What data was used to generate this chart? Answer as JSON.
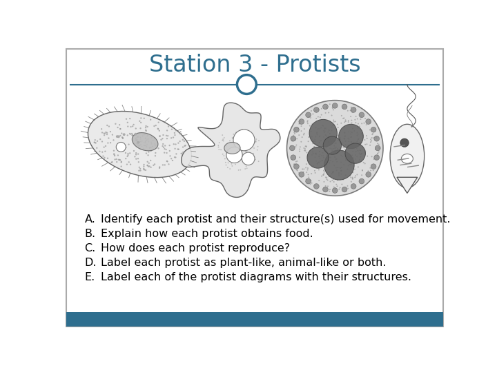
{
  "title": "Station 3 - Protists",
  "title_color": "#2e6e8e",
  "title_fontsize": 24,
  "background_color": "#ffffff",
  "border_color": "#cccccc",
  "footer_color": "#2e6e8e",
  "divider_color": "#2e6e8e",
  "circle_color": "#2e6e8e",
  "questions": [
    {
      "label": "A.",
      "text": "Identify each protist and their structure(s) used for movement."
    },
    {
      "label": "B.",
      "text": "Explain how each protist obtains food."
    },
    {
      "label": "C.",
      "text": "How does each protist reproduce?"
    },
    {
      "label": "D.",
      "text": "Label each protist as plant-like, animal-like or both."
    },
    {
      "label": "E.",
      "text": "Label each of the protist diagrams with their structures."
    }
  ],
  "text_color": "#000000",
  "text_fontsize": 11.5
}
